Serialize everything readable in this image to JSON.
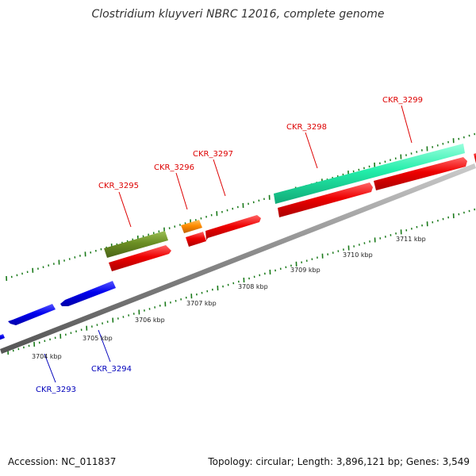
{
  "title": "Clostridium kluyveri NBRC 12016, complete genome",
  "footer": {
    "accession": "Accession: NC_011837",
    "topology": "Topology: circular; Length: 3,896,121 bp; Genes: 3,549"
  },
  "colors": {
    "forward_label": "#dd0000",
    "reverse_label": "#0000bb",
    "tick": "#1a7a1a",
    "backbone": "#909090",
    "red": "#ee0000",
    "blue": "#0000ee",
    "olive": "#6b8e23",
    "orange": "#ff8c00",
    "aqua": "#22eeaa"
  },
  "kbp_labels": [
    "3704 kbp",
    "3705 kbp",
    "3706 kbp",
    "3707 kbp",
    "3708 kbp",
    "3709 kbp",
    "3710 kbp",
    "3711 kbp"
  ],
  "gene_labels": [
    "CKR_3293",
    "CKR_3294",
    "CKR_3295",
    "CKR_3296",
    "CKR_3297",
    "CKR_3298",
    "CKR_3299"
  ]
}
